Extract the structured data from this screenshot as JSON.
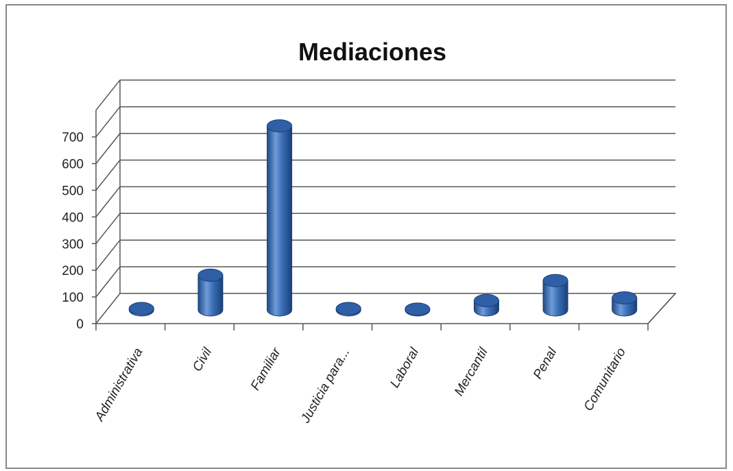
{
  "chart_data": {
    "type": "bar",
    "title": "Mediaciones",
    "xlabel": "",
    "ylabel": "",
    "categories": [
      "Administrativa",
      "Civil",
      "Familiar",
      "Justicia para...",
      "Laboral",
      "Mercantil",
      "Penal",
      "Comunitario"
    ],
    "values": [
      5,
      130,
      690,
      5,
      3,
      35,
      110,
      45
    ],
    "ylim": [
      0,
      700
    ],
    "yticks": [
      0,
      100,
      200,
      300,
      400,
      500,
      600,
      700
    ],
    "grid": true,
    "legend": "none",
    "bar_style": "3d-cylinder",
    "colors": {
      "bar": "#3b6fb6",
      "bar_light": "#7fa6dc",
      "bar_dark": "#1f4a86",
      "grid": "#555555",
      "border": "#888888"
    }
  }
}
